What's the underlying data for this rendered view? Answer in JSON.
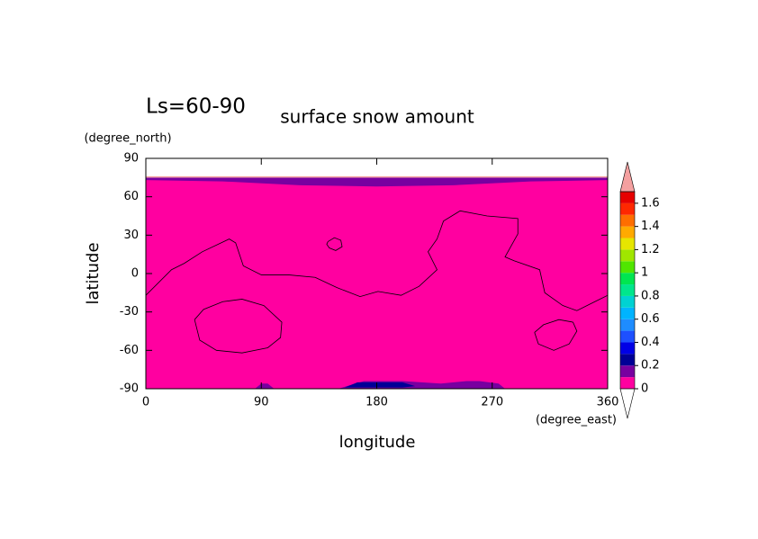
{
  "chart_data": {
    "type": "contour",
    "subtitle": "Ls=60-90",
    "title": "surface snow amount",
    "x_label": "longitude",
    "y_label": "latitude",
    "x_unit": "(degree_east)",
    "y_unit": "(degree_north)",
    "xlim": [
      0,
      360
    ],
    "ylim": [
      -90,
      90
    ],
    "xticks": [
      0,
      90,
      180,
      270,
      360
    ],
    "yticks": [
      -90,
      -60,
      -30,
      0,
      30,
      60,
      90
    ],
    "regions": [
      {
        "value": 0.05,
        "x": [
          0,
          360,
          360,
          0
        ],
        "y": [
          -90,
          -90,
          74,
          74
        ]
      },
      {
        "value": 0.15,
        "x": [
          0,
          60,
          120,
          180,
          240,
          300,
          360,
          360,
          0
        ],
        "y": [
          73,
          72,
          69,
          68,
          69,
          72,
          73,
          75,
          75
        ]
      },
      {
        "value": 1.75,
        "x": [
          0,
          360,
          360,
          0
        ],
        "y": [
          75,
          75,
          76,
          76
        ]
      },
      {
        "value": 0.15,
        "x": [
          85,
          90,
          95,
          100
        ],
        "y": [
          -90,
          -86,
          -86,
          -90
        ]
      },
      {
        "value": 0.15,
        "x": [
          150,
          170,
          200,
          230,
          250,
          260,
          275,
          280
        ],
        "y": [
          -90,
          -84,
          -84,
          -86,
          -84,
          -84,
          -86,
          -90
        ]
      },
      {
        "value": 0.25,
        "x": [
          155,
          165,
          200,
          210,
          200,
          160
        ],
        "y": [
          -89,
          -85,
          -85,
          -88,
          -89,
          -89
        ]
      }
    ],
    "contours": [
      {
        "x": [
          0,
          20,
          30,
          44,
          65,
          70,
          76,
          90,
          111,
          132,
          149,
          167,
          181,
          199,
          213,
          227,
          220,
          227,
          232,
          245,
          266,
          290,
          290,
          280,
          287,
          307,
          311,
          325,
          336,
          350,
          360
        ],
        "y": [
          -17,
          3,
          8,
          17,
          27,
          24,
          6,
          -1,
          -1,
          -3,
          -11,
          -18,
          -14,
          -17,
          -10,
          3,
          17,
          27,
          41,
          49,
          45,
          43,
          31,
          13,
          10,
          3,
          -15,
          -25,
          -29,
          -22,
          -17
        ]
      },
      {
        "x": [
          142,
          147,
          152,
          153,
          148,
          143,
          141,
          142
        ],
        "y": [
          25,
          28,
          26,
          21,
          18,
          20,
          23,
          25
        ]
      },
      {
        "x": [
          38,
          45,
          60,
          75,
          92,
          106,
          105,
          95,
          75,
          55,
          42,
          38
        ],
        "y": [
          -36,
          -28,
          -22,
          -20,
          -25,
          -38,
          -50,
          -58,
          -62,
          -60,
          -52,
          -36
        ]
      },
      {
        "x": [
          303,
          310,
          322,
          333,
          336,
          330,
          318,
          306,
          303
        ],
        "y": [
          -46,
          -40,
          -36,
          -38,
          -45,
          -55,
          -60,
          -55,
          -46
        ]
      }
    ],
    "colorbar": {
      "levels": [
        0,
        0.1,
        0.2,
        0.3,
        0.4,
        0.5,
        0.6,
        0.7,
        0.8,
        0.9,
        1,
        1.1,
        1.2,
        1.3,
        1.4,
        1.5,
        1.6,
        1.7
      ],
      "colors": [
        "#ff00a0",
        "#7800a0",
        "#000096",
        "#0000e6",
        "#1e50ff",
        "#1e8cff",
        "#00b4ff",
        "#00d2d2",
        "#00e68c",
        "#00e650",
        "#50e600",
        "#a0e600",
        "#e6e600",
        "#ffaa00",
        "#ff6e00",
        "#ff2800",
        "#e60000"
      ],
      "over_color": "#f4a0a0",
      "under_color": "#ffffff",
      "ticks": [
        0,
        0.2,
        0.4,
        0.6,
        0.8,
        1,
        1.2,
        1.4,
        1.6
      ]
    }
  }
}
